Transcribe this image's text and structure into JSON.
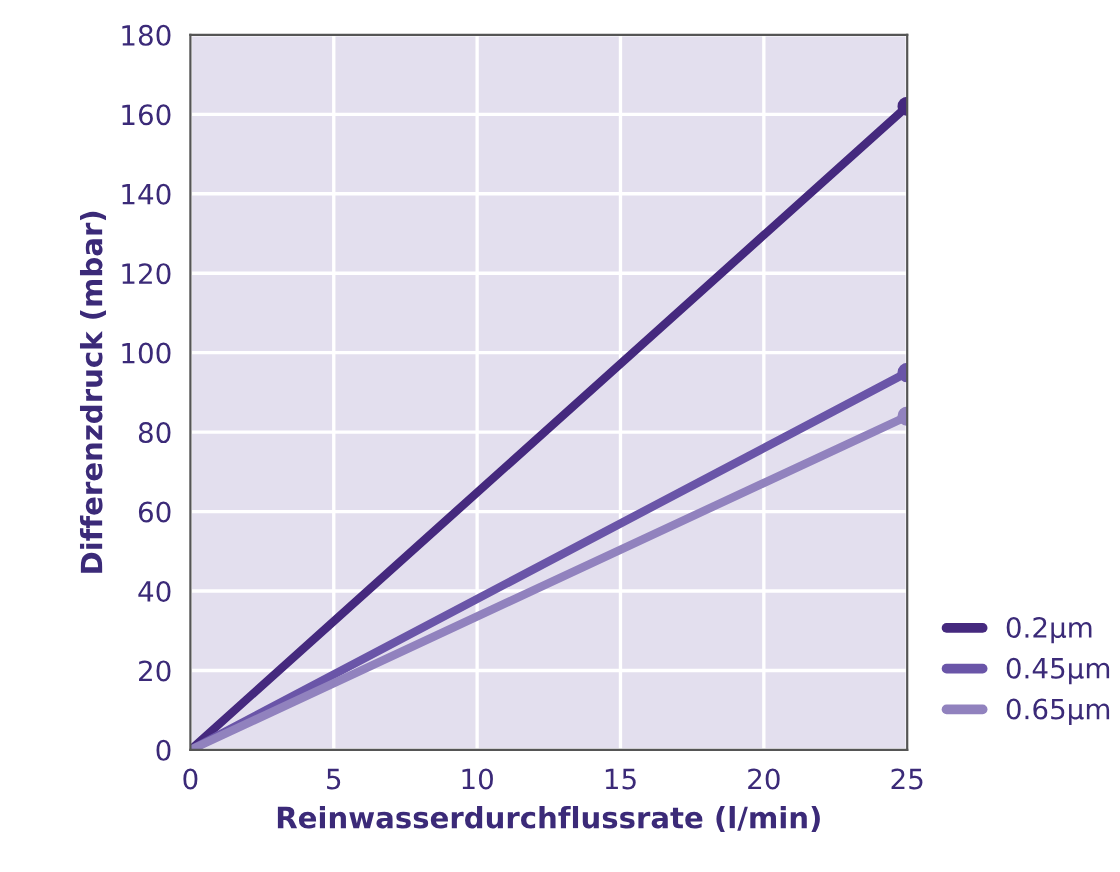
{
  "chart_data": {
    "type": "line",
    "xlabel": "Reinwasserdurchflussrate (l/min)",
    "ylabel": "Differenzdruck (mbar)",
    "x": [
      0,
      25
    ],
    "series": [
      {
        "name": "0.2µm",
        "color": "#45297e",
        "values": [
          0,
          162
        ]
      },
      {
        "name": "0.45µm",
        "color": "#6a55a8",
        "values": [
          0,
          95
        ]
      },
      {
        "name": "0.65µm",
        "color": "#9182be",
        "values": [
          0,
          84
        ]
      }
    ],
    "xlim": [
      0,
      25
    ],
    "xticks": [
      0,
      5,
      10,
      15,
      20,
      25
    ],
    "ylim": [
      0,
      180
    ],
    "yticks": [
      0,
      20,
      40,
      60,
      80,
      100,
      120,
      140,
      160,
      180
    ],
    "grid": true,
    "legend": "bottom right",
    "marker": "circle",
    "line_style": "solid"
  }
}
